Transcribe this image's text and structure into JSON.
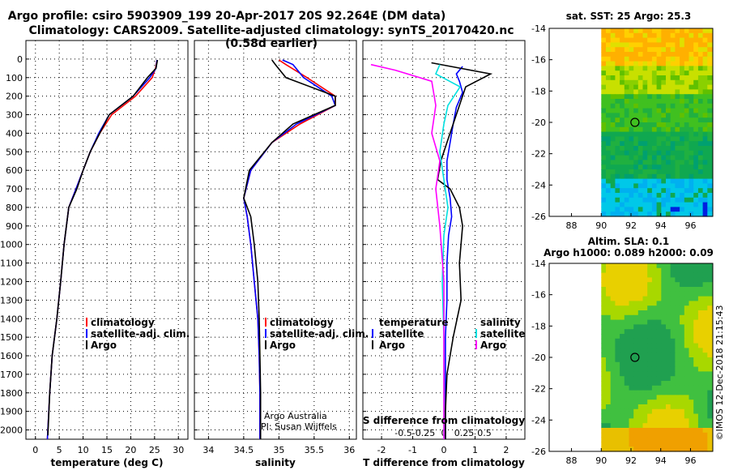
{
  "titles": {
    "line1": "Argo profile: csiro 5903909_199 20-Apr-2017 20S 92.264E (DM data)",
    "line2": "Climatology: CARS2009. Satellite-adjusted climatology: synTS_20170420.nc (0.58d earlier)"
  },
  "colors": {
    "climatology": "#ff0000",
    "satellite_adj": "#0000ff",
    "argo": "#000000",
    "salinity_sat": "#00e0e0",
    "salinity_argo": "#ff00ff"
  },
  "chart_data": [
    {
      "type": "line",
      "panel": "temperature",
      "xlabel": "temperature (deg C)",
      "ylabel": "",
      "xlim": [
        -2,
        32
      ],
      "ylim": [
        2050,
        0
      ],
      "xticks": [
        "0",
        "5",
        "10",
        "15",
        "20",
        "25",
        "30"
      ],
      "yticks": [
        "0",
        "100",
        "200",
        "300",
        "400",
        "500",
        "600",
        "700",
        "800",
        "900",
        "1000",
        "1100",
        "1200",
        "1300",
        "1400",
        "1500",
        "1600",
        "1700",
        "1800",
        "1900",
        "2000"
      ],
      "grid": true,
      "legend": [
        "climatology",
        "satellite-adj. clim.",
        "Argo"
      ],
      "legend_position": "bottom-right",
      "series": [
        {
          "name": "climatology",
          "x": [
            25.5,
            25.2,
            24.5,
            21,
            16,
            13.5,
            11.5,
            10,
            8.5,
            7,
            6,
            5.3,
            4.5,
            3.5,
            3,
            2.5
          ],
          "y": [
            5,
            50,
            100,
            200,
            300,
            400,
            500,
            600,
            700,
            800,
            1000,
            1200,
            1400,
            1600,
            1800,
            2050
          ]
        },
        {
          "name": "satellite-adj. clim.",
          "x": [
            25.5,
            25.3,
            24,
            20.5,
            15.5,
            13.3,
            11.5,
            10,
            8.5,
            7,
            6,
            5.3,
            4.5,
            3.5,
            3,
            2.5
          ],
          "y": [
            5,
            50,
            100,
            200,
            300,
            400,
            500,
            600,
            700,
            800,
            1000,
            1200,
            1400,
            1600,
            1800,
            2050
          ]
        },
        {
          "name": "Argo",
          "x": [
            25.6,
            25.3,
            23.5,
            20.5,
            15.5,
            13.5,
            11.5,
            10,
            8.7,
            7,
            6,
            5.3,
            4.5,
            3.5,
            3,
            2.6
          ],
          "y": [
            5,
            50,
            100,
            200,
            300,
            400,
            500,
            600,
            700,
            800,
            1000,
            1200,
            1400,
            1600,
            1800,
            2030
          ]
        }
      ]
    },
    {
      "type": "line",
      "panel": "salinity",
      "xlabel": "salinity",
      "xlim": [
        33.8,
        36.1
      ],
      "ylim": [
        2050,
        0
      ],
      "xticks": [
        "34",
        "34.5",
        "35",
        "35.5",
        "36"
      ],
      "grid": true,
      "legend": [
        "climatology",
        "satellite-adj. clim.",
        "Argo"
      ],
      "legend_position": "bottom-right",
      "annotation": [
        "Argo Australia",
        "PI: Susan Wijffels"
      ],
      "series": [
        {
          "name": "climatology",
          "x": [
            35.0,
            35.1,
            35.4,
            35.8,
            35.8,
            35.3,
            34.9,
            34.6,
            34.5,
            34.55,
            34.6,
            34.65,
            34.7,
            34.72,
            34.73,
            34.73
          ],
          "y": [
            5,
            30,
            100,
            200,
            250,
            350,
            450,
            600,
            750,
            850,
            1000,
            1200,
            1400,
            1600,
            1800,
            2050
          ]
        },
        {
          "name": "satellite-adj. clim.",
          "x": [
            35.05,
            35.2,
            35.35,
            35.75,
            35.8,
            35.25,
            34.9,
            34.6,
            34.5,
            34.55,
            34.6,
            34.65,
            34.7,
            34.72,
            34.73,
            34.73
          ],
          "y": [
            5,
            30,
            100,
            200,
            250,
            350,
            450,
            600,
            750,
            850,
            1000,
            1200,
            1400,
            1600,
            1800,
            2050
          ]
        },
        {
          "name": "Argo",
          "x": [
            34.9,
            34.95,
            35.1,
            35.8,
            35.8,
            35.2,
            34.9,
            34.58,
            34.5,
            34.6,
            34.65,
            34.7,
            34.72,
            34.73,
            34.74,
            34.74
          ],
          "y": [
            5,
            30,
            100,
            200,
            250,
            350,
            450,
            600,
            750,
            850,
            1000,
            1200,
            1400,
            1600,
            1800,
            2050
          ]
        }
      ]
    },
    {
      "type": "line",
      "panel": "differences",
      "xlabel": "T difference from climatology",
      "xlim": [
        -2.6,
        2.6
      ],
      "ylim": [
        2050,
        0
      ],
      "xticks": [
        "-2",
        "-1",
        "0",
        "1",
        "2"
      ],
      "s_diff_label": "S difference from climatology",
      "s_diff_ticks": [
        "-0.5",
        "-0.25",
        "0",
        "0.25",
        "0.5"
      ],
      "grid": true,
      "legend_temperature_title": "temperature",
      "legend_salinity_title": "salinity",
      "legend_temperature": [
        "satellite",
        "Argo"
      ],
      "legend_salinity": [
        "satellite",
        "Argo"
      ],
      "series": [
        {
          "name": "temperature satellite",
          "x": [
            0.6,
            0.4,
            0.5,
            0.6,
            0.4,
            0.3,
            0.2,
            0.1,
            0.1,
            0.2,
            0.25,
            0.15,
            0.1,
            0.1,
            0.05,
            0.05,
            0.05
          ],
          "y": [
            40,
            80,
            120,
            180,
            260,
            350,
            450,
            550,
            650,
            750,
            850,
            950,
            1100,
            1300,
            1500,
            1800,
            2050
          ]
        },
        {
          "name": "temperature Argo",
          "x": [
            -0.4,
            1.5,
            0.7,
            0.5,
            0.3,
            0.1,
            -0.1,
            -0.2,
            0.2,
            0.5,
            0.6,
            0.5,
            0.55,
            0.3,
            0.1,
            0.05,
            0.05
          ],
          "y": [
            20,
            80,
            150,
            250,
            350,
            450,
            550,
            650,
            700,
            800,
            900,
            1100,
            1300,
            1500,
            1700,
            1900,
            2050
          ]
        },
        {
          "name": "salinity satellite",
          "x": [
            -0.05,
            -0.1,
            0.2,
            0.05,
            0.0,
            -0.05,
            0.0,
            0.05,
            0.0,
            -0.02,
            0.0,
            0.0,
            0.0
          ],
          "y": [
            30,
            80,
            150,
            250,
            350,
            500,
            650,
            800,
            950,
            1200,
            1500,
            1800,
            2050
          ]
        },
        {
          "name": "salinity Argo",
          "x": [
            -0.9,
            -0.6,
            -0.15,
            -0.1,
            -0.15,
            -0.05,
            -0.1,
            -0.05,
            0.0,
            0.0,
            0.0
          ],
          "y": [
            30,
            60,
            120,
            250,
            400,
            550,
            700,
            900,
            1200,
            1600,
            2050
          ]
        }
      ]
    },
    {
      "type": "heatmap",
      "panel": "sst_map",
      "title": "sat. SST: 25 Argo: 25.3",
      "xticks": [
        "88",
        "90",
        "92",
        "94",
        "96"
      ],
      "yticks": [
        "-14",
        "-16",
        "-18",
        "-20",
        "-22",
        "-24",
        "-26"
      ],
      "xlim": [
        86.5,
        97.5
      ],
      "ylim": [
        -26,
        -14
      ],
      "argo_position": {
        "lon": 92.264,
        "lat": -20
      }
    },
    {
      "type": "heatmap",
      "panel": "sla_map",
      "title_line1": "Altim. SLA: 0.1",
      "title_line2": "Argo h1000: 0.089 h2000: 0.09",
      "xticks": [
        "88",
        "90",
        "92",
        "94",
        "96"
      ],
      "yticks": [
        "-14",
        "-16",
        "-18",
        "-20",
        "-22",
        "-24",
        "-26"
      ],
      "xlim": [
        86.5,
        97.5
      ],
      "ylim": [
        -26,
        -14
      ],
      "argo_position": {
        "lon": 92.264,
        "lat": -20
      }
    }
  ],
  "credit": "©IMOS 12-Dec-2018 21:15:43"
}
